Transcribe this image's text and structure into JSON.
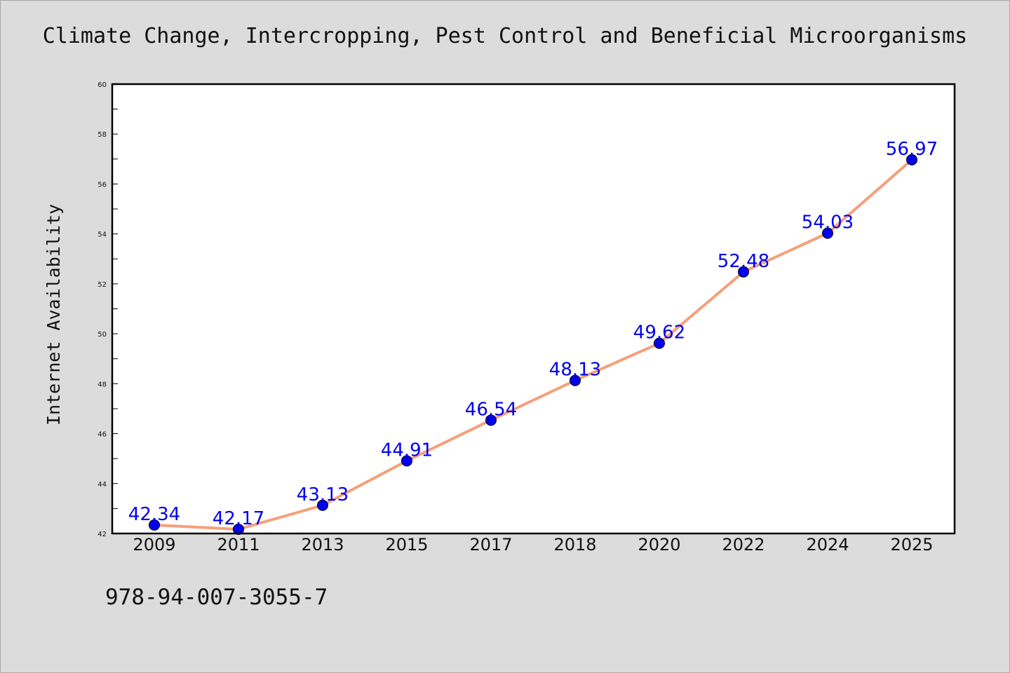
{
  "chart_data": {
    "type": "line",
    "title": "Climate Change, Intercropping, Pest Control and Beneficial Microorganisms",
    "xlabel": "",
    "ylabel": "Internet Availability",
    "categories": [
      "2009",
      "2011",
      "2013",
      "2015",
      "2017",
      "2018",
      "2020",
      "2022",
      "2024",
      "2025"
    ],
    "series": [
      {
        "values": [
          42.34,
          42.17,
          43.13,
          44.91,
          46.54,
          48.13,
          49.62,
          52.48,
          54.03,
          56.97
        ],
        "data_labels": [
          "42.34",
          "42.17",
          "43.13",
          "44.91",
          "46.54",
          "48.13",
          "49.62",
          "52.48",
          "54.03",
          "56.97"
        ],
        "line_color": "#f5a07a",
        "marker_color": "#0000ee"
      }
    ],
    "ylim": [
      42,
      60
    ],
    "yticks": [
      "42",
      "44",
      "46",
      "48",
      "50",
      "52",
      "54",
      "56",
      "58",
      "60"
    ],
    "grid": false,
    "legend": "none"
  },
  "footnote": "978-94-007-3055-7",
  "colors": {
    "background": "#dcdcdc",
    "plot_background": "#ffffff",
    "label_color": "#0000ee"
  }
}
